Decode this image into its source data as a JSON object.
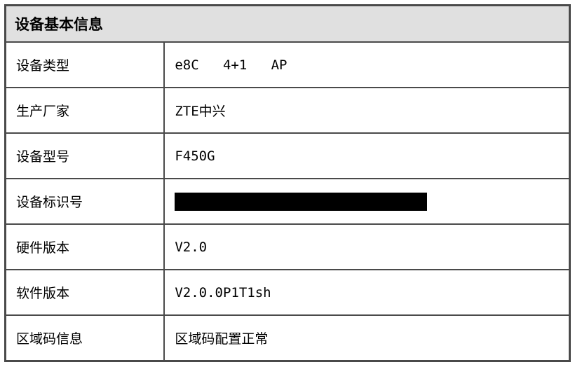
{
  "table": {
    "title": "设备基本信息",
    "title_bg_color": "#e0e0e0",
    "border_color": "#4a4a4a",
    "text_color": "#000000",
    "title_fontsize": 21,
    "cell_fontsize": 19,
    "label_col_width": 226,
    "value_col_width": 576,
    "rows": [
      {
        "label": "设备类型",
        "value": "e8C   4+1   AP",
        "redacted": false
      },
      {
        "label": "生产厂家",
        "value": "ZTE中兴",
        "redacted": false
      },
      {
        "label": "设备型号",
        "value": "F450G",
        "redacted": false
      },
      {
        "label": "设备标识号",
        "value": "",
        "redacted": true
      },
      {
        "label": "硬件版本",
        "value": "V2.0",
        "redacted": false
      },
      {
        "label": "软件版本",
        "value": "V2.0.0P1T1sh",
        "redacted": false
      },
      {
        "label": "区域码信息",
        "value": "区域码配置正常",
        "redacted": false
      }
    ]
  }
}
